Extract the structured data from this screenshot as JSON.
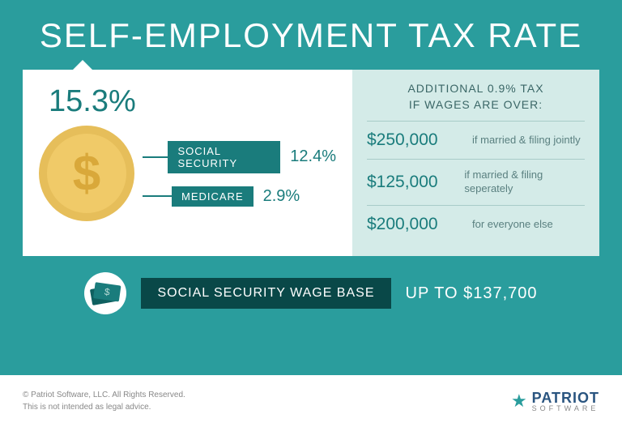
{
  "title": "SELF-EMPLOYMENT TAX RATE",
  "rate": "15.3%",
  "breakdown": [
    {
      "label": "SOCIAL SECURITY",
      "pct": "12.4%"
    },
    {
      "label": "MEDICARE",
      "pct": "2.9%"
    }
  ],
  "additional": {
    "header_line1": "ADDITIONAL 0.9% TAX",
    "header_line2": "IF WAGES ARE OVER:",
    "tiers": [
      {
        "amount": "$250,000",
        "desc": "if married & filing jointly"
      },
      {
        "amount": "$125,000",
        "desc": "if married & filing seperately"
      },
      {
        "amount": "$200,000",
        "desc": "for everyone else"
      }
    ]
  },
  "wage_base": {
    "label": "SOCIAL SECURITY WAGE BASE",
    "amount": "UP TO $137,700"
  },
  "footer": {
    "copyright": "© Patriot Software, LLC. All Rights Reserved.",
    "disclaimer": "This is not intended as legal advice.",
    "logo_main": "PATRIOT",
    "logo_sub": "SOFTWARE"
  },
  "colors": {
    "bg": "#2a9d9d",
    "dark_teal": "#1a7c7c",
    "light_teal": "#d4ebe8",
    "deep_teal": "#094848",
    "coin_outer": "#e6be5a",
    "coin_inner": "#f0ca68",
    "coin_dollar": "#d9a83a"
  }
}
